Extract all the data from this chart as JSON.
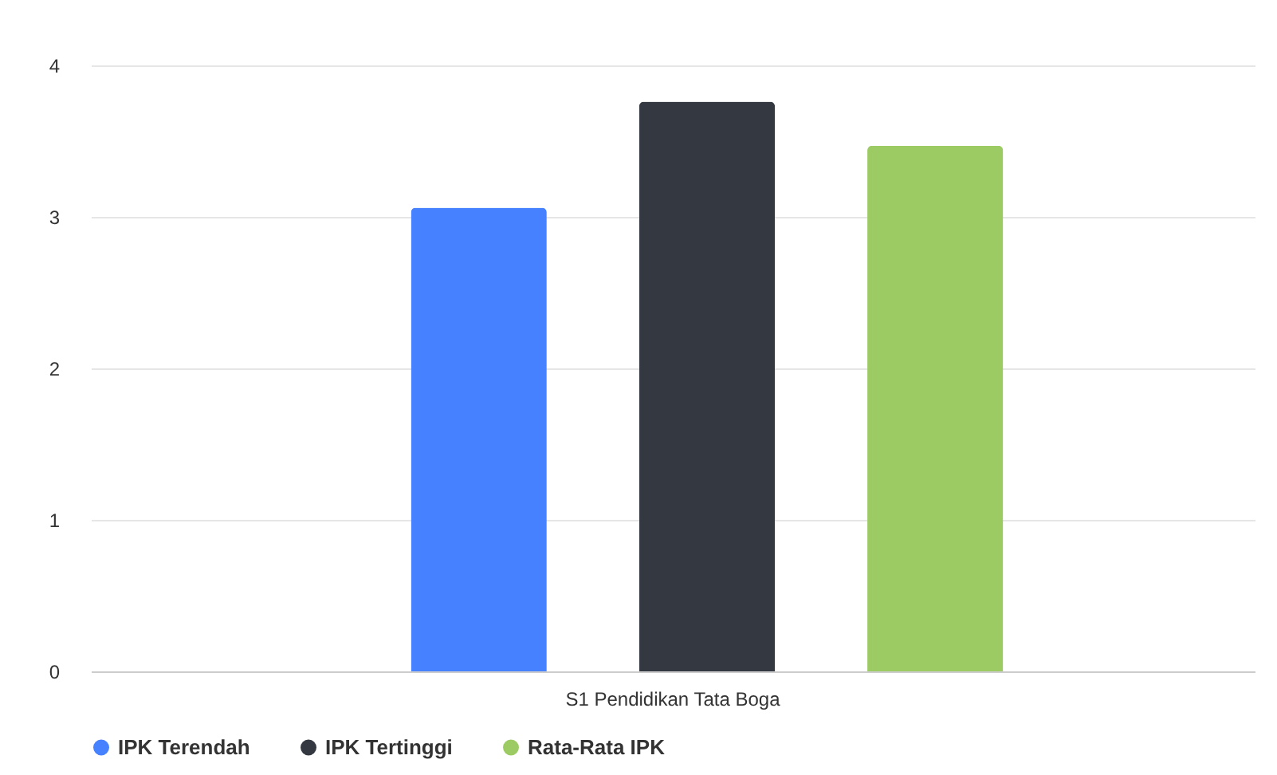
{
  "chart_data": {
    "type": "bar",
    "categories": [
      "S1 Pendidikan Tata Boga"
    ],
    "series": [
      {
        "name": "IPK Terendah",
        "color": "#4681ff",
        "values": [
          3.06
        ]
      },
      {
        "name": "IPK Tertinggi",
        "color": "#343840",
        "values": [
          3.76
        ]
      },
      {
        "name": "Rata-Rata IPK",
        "color": "#9ccb64",
        "values": [
          3.47
        ]
      }
    ],
    "ylim": [
      0,
      4
    ],
    "yticks": [
      0,
      1,
      2,
      3,
      4
    ],
    "grid": "y",
    "legend": "bottom"
  }
}
